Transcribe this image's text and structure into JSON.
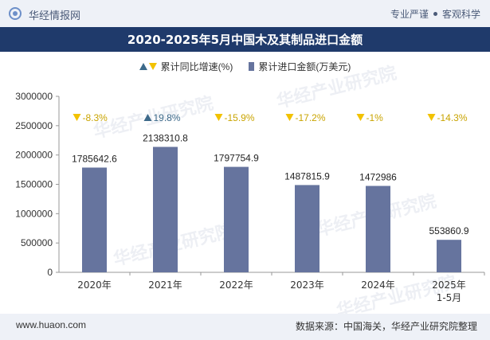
{
  "header": {
    "brand": "华经情报网",
    "tags": [
      "专业严谨",
      "客观科学"
    ],
    "title": "2020-2025年5月中国木及其制品进口金额"
  },
  "legend": {
    "growth_label": "累计同比增速(%)",
    "amount_label": "累计进口金额(万美元)"
  },
  "watermark": "华经产业研究院",
  "footer": {
    "url": "www.huaon.com",
    "source": "数据来源：中国海关，华经产业研究院整理"
  },
  "colors": {
    "bar": "#66749e",
    "up": "#3d6a8a",
    "down": "#f2c200",
    "axis": "#999999"
  },
  "chart_data": {
    "type": "bar",
    "categories": [
      "2020年",
      "2021年",
      "2022年",
      "2023年",
      "2024年",
      "2025年\n1-5月"
    ],
    "series": [
      {
        "name": "累计进口金额(万美元)",
        "values": [
          1785642.6,
          2138310.8,
          1797754.9,
          1487815.9,
          1472986,
          553860.9
        ],
        "labels": [
          "1785642.6",
          "2138310.8",
          "1797754.9",
          "1487815.9",
          "1472986",
          "553860.9"
        ]
      },
      {
        "name": "累计同比增速(%)",
        "values": [
          -8.3,
          19.8,
          -15.9,
          -17.2,
          -1,
          -14.3
        ],
        "labels": [
          "-8.3%",
          "19.8%",
          "-15.9%",
          "-17.2%",
          "-1%",
          "-14.3%"
        ]
      }
    ],
    "ylim": [
      0,
      3000000
    ],
    "yticks": [
      0,
      500000,
      1000000,
      1500000,
      2000000,
      2500000,
      3000000
    ],
    "ytick_labels": [
      "0",
      "500000",
      "1000000",
      "1500000",
      "2000000",
      "2500000",
      "3000000"
    ],
    "legend_position": "top-center",
    "grid": false
  }
}
